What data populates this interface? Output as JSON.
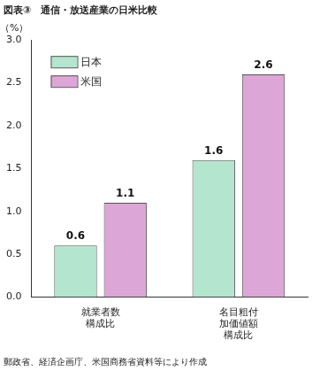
{
  "chart_data": {
    "type": "bar",
    "title": "図表③　通信・放送産業の日米比較",
    "y_label": "（%）",
    "source": "郵政省、経済企画庁、米国商務省資料等により作成",
    "categories": [
      "就業者数\n構成比",
      "名目粗付\n加価値額\n構成比"
    ],
    "series": [
      {
        "name": "日本",
        "color": "#b4e6cf",
        "values": [
          0.6,
          1.6
        ]
      },
      {
        "name": "米国",
        "color": "#dca6d6",
        "values": [
          1.1,
          2.6
        ]
      }
    ],
    "ylim": [
      0,
      3
    ],
    "yticks": [
      {
        "value": 0,
        "label": "0.0"
      },
      {
        "value": 0.5,
        "label": "0.5"
      },
      {
        "value": 1,
        "label": "1.0"
      },
      {
        "value": 1.5,
        "label": "1.5"
      },
      {
        "value": 2,
        "label": "2.0"
      },
      {
        "value": 2.5,
        "label": "2.5"
      },
      {
        "value": 3,
        "label": "3.0"
      }
    ],
    "grid": false,
    "legend": "upper left",
    "data_labels": true
  }
}
